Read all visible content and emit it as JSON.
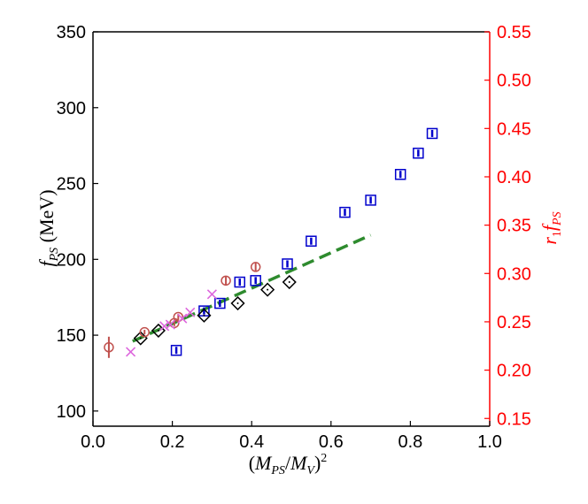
{
  "chart_data": {
    "type": "scatter",
    "xlabel": "(M_PS/M_V)^2",
    "ylabel_left": "f_PS (MeV)",
    "ylabel_right": "r_1 f_PS",
    "xlim": [
      0.0,
      1.0
    ],
    "ylim_left": [
      90,
      350
    ],
    "ylim_right": [
      0.142,
      0.55
    ],
    "x_ticks": [
      "0.0",
      "0.2",
      "0.4",
      "0.6",
      "0.8",
      "1.0"
    ],
    "y_ticks_left": [
      "100",
      "150",
      "200",
      "250",
      "300",
      "350"
    ],
    "y_ticks_right": [
      "0.15",
      "0.20",
      "0.25",
      "0.30",
      "0.35",
      "0.40",
      "0.45",
      "0.50",
      "0.55"
    ],
    "grid": false,
    "colors": {
      "blue": "#0000cc",
      "black": "#000000",
      "red": "#c0504d",
      "magenta": "#dd66dd",
      "fit": "#2e8b2e",
      "right_axis": "#ff0000"
    },
    "series": [
      {
        "marker": "square",
        "color": "#0000cc",
        "x": [
          0.21,
          0.28,
          0.32,
          0.37,
          0.41,
          0.49,
          0.55,
          0.635,
          0.7,
          0.775,
          0.82,
          0.855
        ],
        "y": [
          140,
          166,
          171,
          185,
          186,
          197,
          212,
          231,
          239,
          256,
          270,
          283
        ]
      },
      {
        "marker": "diamond",
        "color": "#000000",
        "x": [
          0.12,
          0.165,
          0.28,
          0.365,
          0.44,
          0.495
        ],
        "y": [
          148,
          153,
          163,
          171,
          180,
          185
        ]
      },
      {
        "marker": "circle",
        "color": "#c0504d",
        "x": [
          0.04,
          0.13,
          0.205,
          0.215,
          0.335,
          0.41
        ],
        "y": [
          142,
          152,
          158,
          162,
          186,
          195
        ],
        "yerr": [
          7,
          1.5,
          2,
          2,
          3,
          3
        ]
      },
      {
        "marker": "cross",
        "color": "#dd66dd",
        "x": [
          0.095,
          0.18,
          0.195,
          0.225,
          0.245,
          0.3
        ],
        "y": [
          139,
          156,
          157,
          161,
          165,
          177
        ]
      }
    ],
    "fit_line": {
      "style": "dashed",
      "color": "#2e8b2e",
      "x": [
        0.1,
        0.7
      ],
      "y": [
        146,
        216
      ]
    }
  }
}
